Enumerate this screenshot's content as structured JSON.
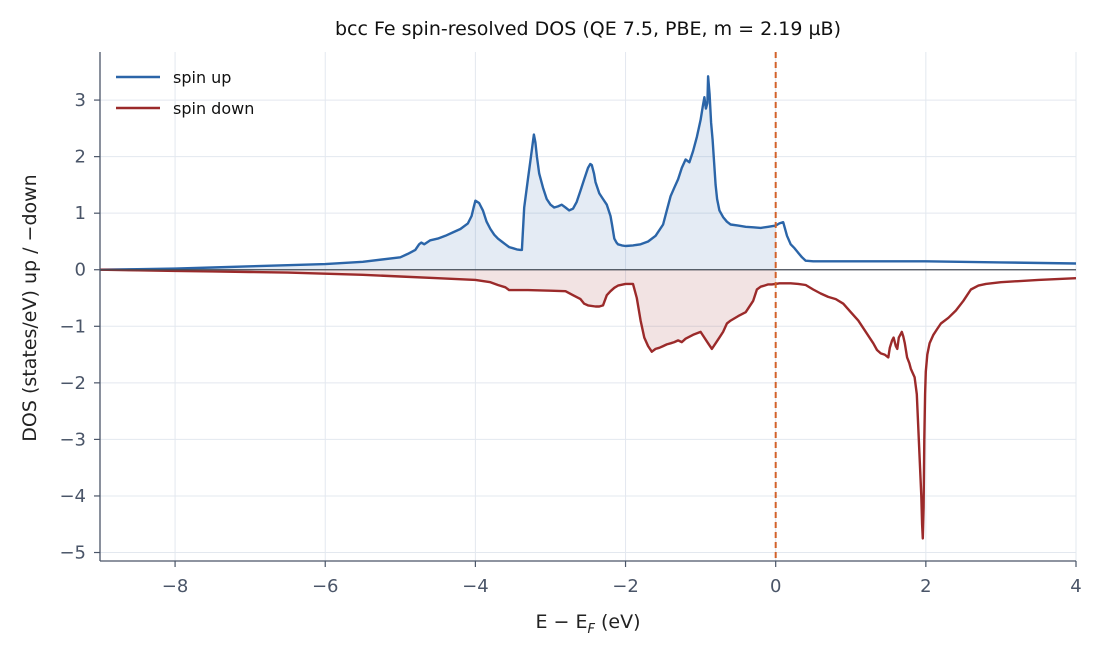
{
  "chart_data": {
    "type": "line",
    "title": "bcc Fe spin-resolved DOS  (QE 7.5, PBE, m = 2.19 µB)",
    "xlabel_main": "E − E",
    "xlabel_sub": "F",
    "xlabel_unit": "  (eV)",
    "ylabel": "DOS  (states/eV)    up / −down",
    "xlim": [
      -9,
      4
    ],
    "ylim": [
      -5.15,
      3.85
    ],
    "xticks": [
      -8,
      -6,
      -4,
      -2,
      0,
      2,
      4
    ],
    "xtick_labels": [
      "−8",
      "−6",
      "−4",
      "−2",
      "0",
      "2",
      "4"
    ],
    "yticks": [
      3,
      2,
      1,
      0,
      -1,
      -2,
      -3,
      -4,
      -5
    ],
    "ytick_labels": [
      "3",
      "2",
      "1",
      "0",
      "−1",
      "−2",
      "−3",
      "−4",
      "−5"
    ],
    "grid": true,
    "legend_position": "top-left",
    "fermi_level": 0,
    "colors": {
      "spin_up": "#2b65a8",
      "spin_down": "#9b2a2a",
      "fermi": "#d2622a",
      "grid": "#e3e8ef",
      "axis": "#4a5568",
      "zero": "#444b55"
    },
    "series": [
      {
        "name": "spin up",
        "x": [
          -9.0,
          -8.5,
          -8.0,
          -7.5,
          -7.0,
          -6.5,
          -6.0,
          -5.5,
          -5.0,
          -4.9,
          -4.8,
          -4.75,
          -4.72,
          -4.68,
          -4.6,
          -4.5,
          -4.4,
          -4.3,
          -4.2,
          -4.1,
          -4.05,
          -4.02,
          -4.0,
          -3.95,
          -3.9,
          -3.85,
          -3.8,
          -3.75,
          -3.7,
          -3.65,
          -3.6,
          -3.55,
          -3.5,
          -3.45,
          -3.4,
          -3.38,
          -3.35,
          -3.3,
          -3.27,
          -3.25,
          -3.23,
          -3.22,
          -3.2,
          -3.18,
          -3.15,
          -3.1,
          -3.05,
          -3.0,
          -2.95,
          -2.9,
          -2.85,
          -2.8,
          -2.75,
          -2.7,
          -2.65,
          -2.6,
          -2.55,
          -2.5,
          -2.47,
          -2.45,
          -2.42,
          -2.4,
          -2.35,
          -2.3,
          -2.25,
          -2.2,
          -2.18,
          -2.15,
          -2.12,
          -2.1,
          -2.05,
          -2.0,
          -1.9,
          -1.8,
          -1.7,
          -1.6,
          -1.5,
          -1.45,
          -1.4,
          -1.35,
          -1.3,
          -1.25,
          -1.2,
          -1.15,
          -1.1,
          -1.05,
          -1.0,
          -0.97,
          -0.95,
          -0.93,
          -0.91,
          -0.9,
          -0.88,
          -0.86,
          -0.84,
          -0.82,
          -0.8,
          -0.78,
          -0.75,
          -0.7,
          -0.65,
          -0.6,
          -0.5,
          -0.4,
          -0.3,
          -0.2,
          -0.1,
          0.0,
          0.05,
          0.1,
          0.15,
          0.2,
          0.25,
          0.3,
          0.35,
          0.4,
          0.5,
          1.0,
          2.0,
          3.0,
          4.0
        ],
        "y": [
          0.0,
          0.01,
          0.02,
          0.04,
          0.06,
          0.08,
          0.1,
          0.14,
          0.22,
          0.28,
          0.35,
          0.45,
          0.48,
          0.45,
          0.52,
          0.55,
          0.6,
          0.66,
          0.72,
          0.82,
          0.95,
          1.12,
          1.22,
          1.18,
          1.05,
          0.85,
          0.72,
          0.62,
          0.55,
          0.5,
          0.45,
          0.4,
          0.38,
          0.36,
          0.35,
          0.35,
          1.1,
          1.6,
          1.9,
          2.1,
          2.3,
          2.39,
          2.25,
          2.0,
          1.7,
          1.45,
          1.25,
          1.15,
          1.1,
          1.12,
          1.15,
          1.1,
          1.05,
          1.08,
          1.2,
          1.4,
          1.6,
          1.8,
          1.87,
          1.85,
          1.7,
          1.55,
          1.35,
          1.25,
          1.15,
          0.95,
          0.8,
          0.55,
          0.48,
          0.45,
          0.43,
          0.42,
          0.43,
          0.45,
          0.5,
          0.6,
          0.8,
          1.05,
          1.3,
          1.45,
          1.6,
          1.8,
          1.95,
          1.9,
          2.1,
          2.35,
          2.65,
          2.9,
          3.05,
          2.85,
          2.95,
          3.42,
          3.1,
          2.6,
          2.3,
          1.9,
          1.5,
          1.25,
          1.05,
          0.93,
          0.85,
          0.8,
          0.78,
          0.76,
          0.75,
          0.74,
          0.76,
          0.78,
          0.82,
          0.84,
          0.6,
          0.45,
          0.38,
          0.3,
          0.22,
          0.16,
          0.15,
          0.15,
          0.15,
          0.13,
          0.11
        ]
      },
      {
        "name": "spin down",
        "x": [
          -9.0,
          -8.5,
          -8.0,
          -7.5,
          -7.0,
          -6.5,
          -6.0,
          -5.5,
          -5.0,
          -4.5,
          -4.0,
          -3.8,
          -3.7,
          -3.6,
          -3.55,
          -3.5,
          -3.3,
          -3.0,
          -2.8,
          -2.7,
          -2.6,
          -2.55,
          -2.5,
          -2.4,
          -2.35,
          -2.3,
          -2.25,
          -2.2,
          -2.15,
          -2.1,
          -2.0,
          -1.9,
          -1.85,
          -1.8,
          -1.75,
          -1.7,
          -1.65,
          -1.6,
          -1.55,
          -1.5,
          -1.45,
          -1.4,
          -1.35,
          -1.3,
          -1.25,
          -1.2,
          -1.1,
          -1.0,
          -0.9,
          -0.85,
          -0.8,
          -0.75,
          -0.7,
          -0.65,
          -0.6,
          -0.5,
          -0.4,
          -0.3,
          -0.25,
          -0.2,
          -0.15,
          -0.1,
          -0.05,
          0.0,
          0.05,
          0.1,
          0.2,
          0.3,
          0.4,
          0.5,
          0.6,
          0.7,
          0.8,
          0.9,
          1.0,
          1.1,
          1.2,
          1.3,
          1.35,
          1.4,
          1.45,
          1.5,
          1.52,
          1.55,
          1.57,
          1.6,
          1.62,
          1.64,
          1.66,
          1.68,
          1.7,
          1.72,
          1.75,
          1.78,
          1.8,
          1.85,
          1.88,
          1.9,
          1.92,
          1.94,
          1.95,
          1.96,
          1.97,
          1.98,
          1.99,
          2.0,
          2.02,
          2.05,
          2.1,
          2.15,
          2.2,
          2.3,
          2.4,
          2.5,
          2.55,
          2.6,
          2.7,
          2.8,
          3.0,
          3.5,
          4.0
        ],
        "y": [
          0.0,
          -0.01,
          -0.02,
          -0.03,
          -0.04,
          -0.05,
          -0.07,
          -0.09,
          -0.12,
          -0.15,
          -0.18,
          -0.22,
          -0.27,
          -0.31,
          -0.36,
          -0.36,
          -0.36,
          -0.37,
          -0.38,
          -0.45,
          -0.52,
          -0.6,
          -0.63,
          -0.65,
          -0.65,
          -0.63,
          -0.45,
          -0.38,
          -0.32,
          -0.28,
          -0.25,
          -0.25,
          -0.5,
          -0.9,
          -1.2,
          -1.35,
          -1.45,
          -1.4,
          -1.38,
          -1.35,
          -1.32,
          -1.3,
          -1.28,
          -1.25,
          -1.28,
          -1.22,
          -1.15,
          -1.1,
          -1.3,
          -1.4,
          -1.3,
          -1.2,
          -1.1,
          -0.95,
          -0.9,
          -0.82,
          -0.75,
          -0.55,
          -0.35,
          -0.3,
          -0.28,
          -0.26,
          -0.26,
          -0.25,
          -0.24,
          -0.24,
          -0.24,
          -0.25,
          -0.27,
          -0.35,
          -0.42,
          -0.48,
          -0.52,
          -0.6,
          -0.75,
          -0.9,
          -1.1,
          -1.3,
          -1.42,
          -1.48,
          -1.5,
          -1.55,
          -1.38,
          -1.25,
          -1.2,
          -1.35,
          -1.4,
          -1.2,
          -1.15,
          -1.1,
          -1.18,
          -1.3,
          -1.55,
          -1.65,
          -1.75,
          -1.9,
          -2.2,
          -2.8,
          -3.4,
          -4.0,
          -4.5,
          -4.75,
          -4.2,
          -3.0,
          -2.2,
          -1.8,
          -1.5,
          -1.3,
          -1.15,
          -1.05,
          -0.95,
          -0.85,
          -0.72,
          -0.55,
          -0.45,
          -0.35,
          -0.28,
          -0.25,
          -0.22,
          -0.18,
          -0.15
        ]
      }
    ]
  }
}
